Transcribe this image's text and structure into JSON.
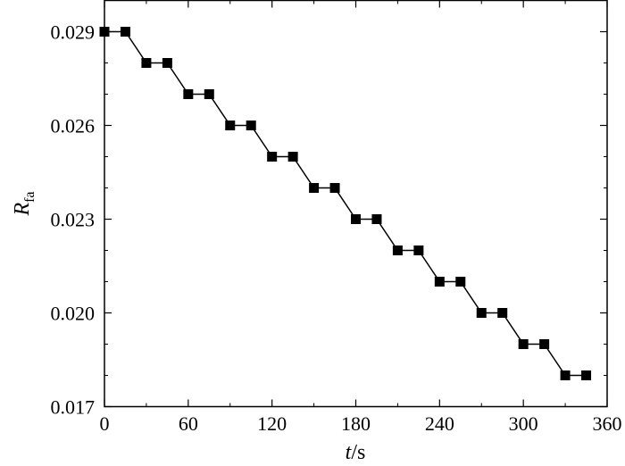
{
  "chart_data": {
    "type": "line",
    "title": "",
    "xlabel": {
      "var": "t",
      "unit": "/s"
    },
    "ylabel": {
      "var": "R",
      "sub": "fa"
    },
    "xlim": [
      0,
      360
    ],
    "ylim": [
      0.017,
      0.03
    ],
    "xticks": [
      "0",
      "60",
      "120",
      "180",
      "240",
      "300",
      "360"
    ],
    "xtick_values": [
      0,
      60,
      120,
      180,
      240,
      300,
      360
    ],
    "yticks": [
      "0.017",
      "0.020",
      "0.023",
      "0.026",
      "0.029"
    ],
    "ytick_values": [
      0.017,
      0.02,
      0.023,
      0.026,
      0.029
    ],
    "grid": false,
    "marker": "square",
    "series": [
      {
        "x": [
          0,
          15,
          30,
          45,
          60,
          75,
          90,
          105,
          120,
          135,
          150,
          165,
          180,
          195,
          210,
          225,
          240,
          255,
          270,
          285,
          300,
          315,
          330,
          345
        ],
        "y": [
          0.029,
          0.029,
          0.028,
          0.028,
          0.027,
          0.027,
          0.026,
          0.026,
          0.025,
          0.025,
          0.024,
          0.024,
          0.023,
          0.023,
          0.022,
          0.022,
          0.021,
          0.021,
          0.02,
          0.02,
          0.019,
          0.019,
          0.018,
          0.018
        ]
      }
    ]
  }
}
